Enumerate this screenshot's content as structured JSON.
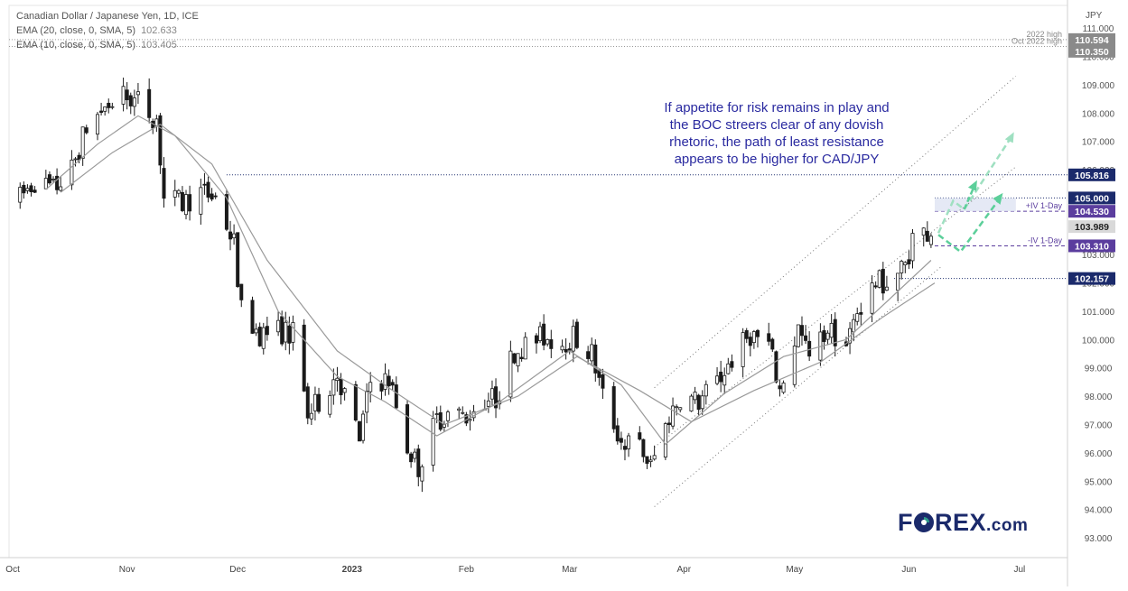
{
  "legend": {
    "title": "Canadian Dollar / Japanese Yen, 1D, ICE",
    "ema1_label": "EMA (20, close, 0, SMA, 5)",
    "ema1_value": "102.633",
    "ema2_label": "EMA (10, close, 0, SMA, 5)",
    "ema2_value": "103.405"
  },
  "annotation_lines": [
    "If appetite for risk remains in play and",
    "the BOC streers clear of any dovish",
    "rhetoric, the path of least resistance",
    "appears to be higher for CAD/JPY"
  ],
  "logo": {
    "brand_pre": "F",
    "brand_post": "REX",
    "suffix": ".com"
  },
  "colors": {
    "candle": "#1a1a1a",
    "ema": "#9a9a9a",
    "navy_label": "#1b2a6b",
    "purple_label": "#5b3d9e",
    "grey_label": "#8a8a8a",
    "arrow": "#5ccf9a",
    "text_blue": "#2a2aa0"
  },
  "chart_data": {
    "type": "candlestick",
    "title": "Canadian Dollar / Japanese Yen, 1D, ICE",
    "y_axis_unit": "JPY",
    "ylim": [
      92.3,
      111.8
    ],
    "y_ticks": [
      93.0,
      94.0,
      95.0,
      96.0,
      97.0,
      98.0,
      99.0,
      100.0,
      101.0,
      102.0,
      103.0,
      104.0,
      105.0,
      106.0,
      107.0,
      108.0,
      109.0,
      110.0,
      111.0
    ],
    "x_ticks": [
      "Oct",
      "Nov",
      "Dec",
      "2023",
      "Feb",
      "Mar",
      "Apr",
      "May",
      "Jun",
      "Jul"
    ],
    "series_close_path": [
      [
        "2022-10-03",
        105.0
      ],
      [
        "2022-10-07",
        105.6
      ],
      [
        "2022-10-12",
        105.3
      ],
      [
        "2022-10-17",
        106.0
      ],
      [
        "2022-10-21",
        107.5
      ],
      [
        "2022-10-26",
        108.2
      ],
      [
        "2022-10-31",
        108.6
      ],
      [
        "2022-11-04",
        108.4
      ],
      [
        "2022-11-09",
        107.8
      ],
      [
        "2022-11-11",
        105.0
      ],
      [
        "2022-11-16",
        104.8
      ],
      [
        "2022-11-21",
        105.2
      ],
      [
        "2022-11-25",
        105.0
      ],
      [
        "2022-11-30",
        103.4
      ],
      [
        "2022-12-02",
        101.0
      ],
      [
        "2022-12-07",
        100.2
      ],
      [
        "2022-12-12",
        100.3
      ],
      [
        "2022-12-16",
        100.2
      ],
      [
        "2022-12-20",
        97.3
      ],
      [
        "2022-12-23",
        97.8
      ],
      [
        "2022-12-28",
        98.8
      ],
      [
        "2023-01-03",
        96.5
      ],
      [
        "2023-01-06",
        98.5
      ],
      [
        "2023-01-11",
        98.6
      ],
      [
        "2023-01-16",
        96.2
      ],
      [
        "2023-01-19",
        95.5
      ],
      [
        "2023-01-24",
        97.2
      ],
      [
        "2023-01-27",
        97.4
      ],
      [
        "2023-02-01",
        97.3
      ],
      [
        "2023-02-06",
        97.9
      ],
      [
        "2023-02-09",
        97.9
      ],
      [
        "2023-02-14",
        99.6
      ],
      [
        "2023-02-17",
        99.8
      ],
      [
        "2023-02-22",
        100.1
      ],
      [
        "2023-02-27",
        99.9
      ],
      [
        "2023-03-02",
        100.1
      ],
      [
        "2023-03-07",
        99.5
      ],
      [
        "2023-03-10",
        98.0
      ],
      [
        "2023-03-15",
        96.4
      ],
      [
        "2023-03-20",
        96.2
      ],
      [
        "2023-03-23",
        95.5
      ],
      [
        "2023-03-28",
        97.3
      ],
      [
        "2023-03-31",
        98.0
      ],
      [
        "2023-04-05",
        97.8
      ],
      [
        "2023-04-10",
        98.5
      ],
      [
        "2023-04-14",
        99.3
      ],
      [
        "2023-04-19",
        100.2
      ],
      [
        "2023-04-24",
        99.8
      ],
      [
        "2023-04-27",
        98.2
      ],
      [
        "2023-05-02",
        100.4
      ],
      [
        "2023-05-05",
        99.3
      ],
      [
        "2023-05-10",
        100.4
      ],
      [
        "2023-05-15",
        99.8
      ],
      [
        "2023-05-18",
        101.0
      ],
      [
        "2023-05-23",
        102.0
      ],
      [
        "2023-05-26",
        102.0
      ],
      [
        "2023-05-31",
        102.6
      ],
      [
        "2023-06-02",
        103.6
      ],
      [
        "2023-06-07",
        103.9
      ]
    ],
    "ema_fast_path": [
      [
        "2022-10-10",
        105.3
      ],
      [
        "2022-10-24",
        106.9
      ],
      [
        "2022-11-04",
        107.9
      ],
      [
        "2022-11-14",
        107.2
      ],
      [
        "2022-11-28",
        105.0
      ],
      [
        "2022-12-12",
        101.0
      ],
      [
        "2022-12-28",
        98.7
      ],
      [
        "2023-01-10",
        97.8
      ],
      [
        "2023-01-24",
        96.6
      ],
      [
        "2023-02-10",
        97.8
      ],
      [
        "2023-03-01",
        99.6
      ],
      [
        "2023-03-15",
        98.4
      ],
      [
        "2023-03-27",
        96.3
      ],
      [
        "2023-04-12",
        98.1
      ],
      [
        "2023-04-28",
        99.4
      ],
      [
        "2023-05-15",
        100.0
      ],
      [
        "2023-06-07",
        102.8
      ]
    ],
    "ema_slow_path": [
      [
        "2022-10-14",
        105.2
      ],
      [
        "2022-10-28",
        106.6
      ],
      [
        "2022-11-10",
        107.6
      ],
      [
        "2022-11-24",
        106.2
      ],
      [
        "2022-12-09",
        102.8
      ],
      [
        "2022-12-28",
        99.6
      ],
      [
        "2023-01-12",
        98.2
      ],
      [
        "2023-01-26",
        97.0
      ],
      [
        "2023-02-15",
        98.0
      ],
      [
        "2023-03-03",
        99.4
      ],
      [
        "2023-03-20",
        98.2
      ],
      [
        "2023-04-03",
        97.1
      ],
      [
        "2023-04-20",
        98.2
      ],
      [
        "2023-05-08",
        99.2
      ],
      [
        "2023-05-25",
        100.8
      ],
      [
        "2023-06-08",
        102.0
      ]
    ],
    "price_labels": [
      {
        "value": "110.594",
        "style": "grey",
        "price": 110.594,
        "line_label": "2022 high"
      },
      {
        "value": "110.350",
        "style": "grey",
        "price": 110.35,
        "line_label": "Oct 2022 high"
      },
      {
        "value": "105.816",
        "style": "navy",
        "price": 105.816,
        "line_label": ""
      },
      {
        "value": "105.000",
        "style": "navy",
        "price": 105.0,
        "line_label": ""
      },
      {
        "value": "104.530",
        "style": "purple",
        "price": 104.53,
        "line_label": "+IV 1-Day"
      },
      {
        "value": "103.989",
        "style": "grey",
        "price": 103.989,
        "line_label": ""
      },
      {
        "value": "103.310",
        "style": "purple",
        "price": 103.31,
        "line_label": "-IV 1-Day"
      },
      {
        "value": "102.157",
        "style": "navy",
        "price": 102.157,
        "line_label": ""
      }
    ],
    "trend_channel": {
      "lower": [
        [
          "2023-03-24",
          94.1
        ],
        [
          "2023-06-10",
          102.6
        ]
      ],
      "upper": [
        [
          "2023-03-24",
          98.3
        ],
        [
          "2023-06-30",
          109.3
        ]
      ],
      "mid": [
        [
          "2023-03-24",
          96.2
        ],
        [
          "2023-06-30",
          106.1
        ]
      ]
    },
    "legend": [
      "EMA (20, close, 0, SMA, 5) 102.633",
      "EMA (10, close, 0, SMA, 5) 103.405"
    ],
    "grid": false
  }
}
